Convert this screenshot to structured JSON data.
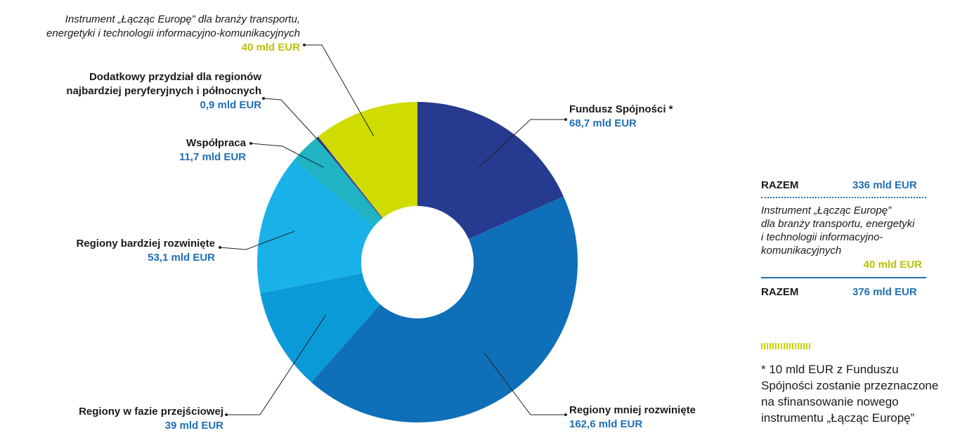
{
  "chart_data": {
    "type": "pie",
    "donut": true,
    "unit": "mld EUR",
    "slices": [
      {
        "label": "Fundusz Spójności *",
        "display": "68,7 mld EUR",
        "value": 68.7,
        "color": "#263a8f"
      },
      {
        "label": "Regiony mniej rozwinięte",
        "display": "162,6 mld EUR",
        "value": 162.6,
        "color": "#0f6fb8"
      },
      {
        "label": "Regiony w fazie przejściowej",
        "display": "39 mld EUR",
        "value": 39,
        "color": "#0a9ad8"
      },
      {
        "label": "Regiony bardziej rozwinięte",
        "display": "53,1 mld EUR",
        "value": 53.1,
        "color": "#19b2e8"
      },
      {
        "label": "Współpraca",
        "display": "11,7 mld EUR",
        "value": 11.7,
        "color": "#20b3c4"
      },
      {
        "label": "Dodatkowy przydział dla regionów najbardziej peryferyjnych i północnych",
        "display": "0,9 mld EUR",
        "value": 0.9,
        "color": "#3b3f93"
      },
      {
        "label": "Instrument „Łącząc Europę” dla branży transportu, energetyki i technologii informacyjno-komunikacyjnych",
        "display": "40 mld EUR",
        "value": 40,
        "color": "#d0db00"
      }
    ]
  },
  "labels": {
    "cohesion": {
      "name": "Fundusz Spójności *",
      "value": "68,7 mld EUR"
    },
    "less_dev": {
      "name": "Regiony mniej rozwinięte",
      "value": "162,6 mld EUR"
    },
    "transition": {
      "name": "Regiony w fazie przejściowej",
      "value": "39 mld EUR"
    },
    "more_dev": {
      "name": "Regiony bardziej rozwinięte",
      "value": "53,1 mld EUR"
    },
    "cooperation": {
      "name": "Współpraca",
      "value": "11,7 mld EUR"
    },
    "peripheral": {
      "name_line1": "Dodatkowy przydział dla regionów",
      "name_line2": "najbardziej peryferyjnych i północnych",
      "value": "0,9 mld EUR"
    },
    "cef": {
      "name_line1": "Instrument „Łącząc Europę” dla branży transportu,",
      "name_line2": "energetyki i technologii informacyjno-komunikacyjnych",
      "value": "40 mld EUR"
    }
  },
  "summary": {
    "total1_label": "RAZEM",
    "total1_value": "336 mld EUR",
    "cef_line1": "Instrument „Łącząc Europę”",
    "cef_line2": "dla branży transportu, energetyki",
    "cef_line3": "i technologii informacyjno-",
    "cef_line4": "komunikacyjnych",
    "cef_value": "40 mld EUR",
    "total2_label": "RAZEM",
    "total2_value": "376 mld EUR"
  },
  "footnote": {
    "line1": "* 10 mld EUR z Funduszu",
    "line2": "Spójności zostanie przeznaczone",
    "line3": "na sfinansowanie nowego",
    "line4": "instrumentu „Łącząc Europę”"
  },
  "colors": {
    "accent_blue": "#1f6fb5",
    "accent_green": "#b8c400"
  }
}
